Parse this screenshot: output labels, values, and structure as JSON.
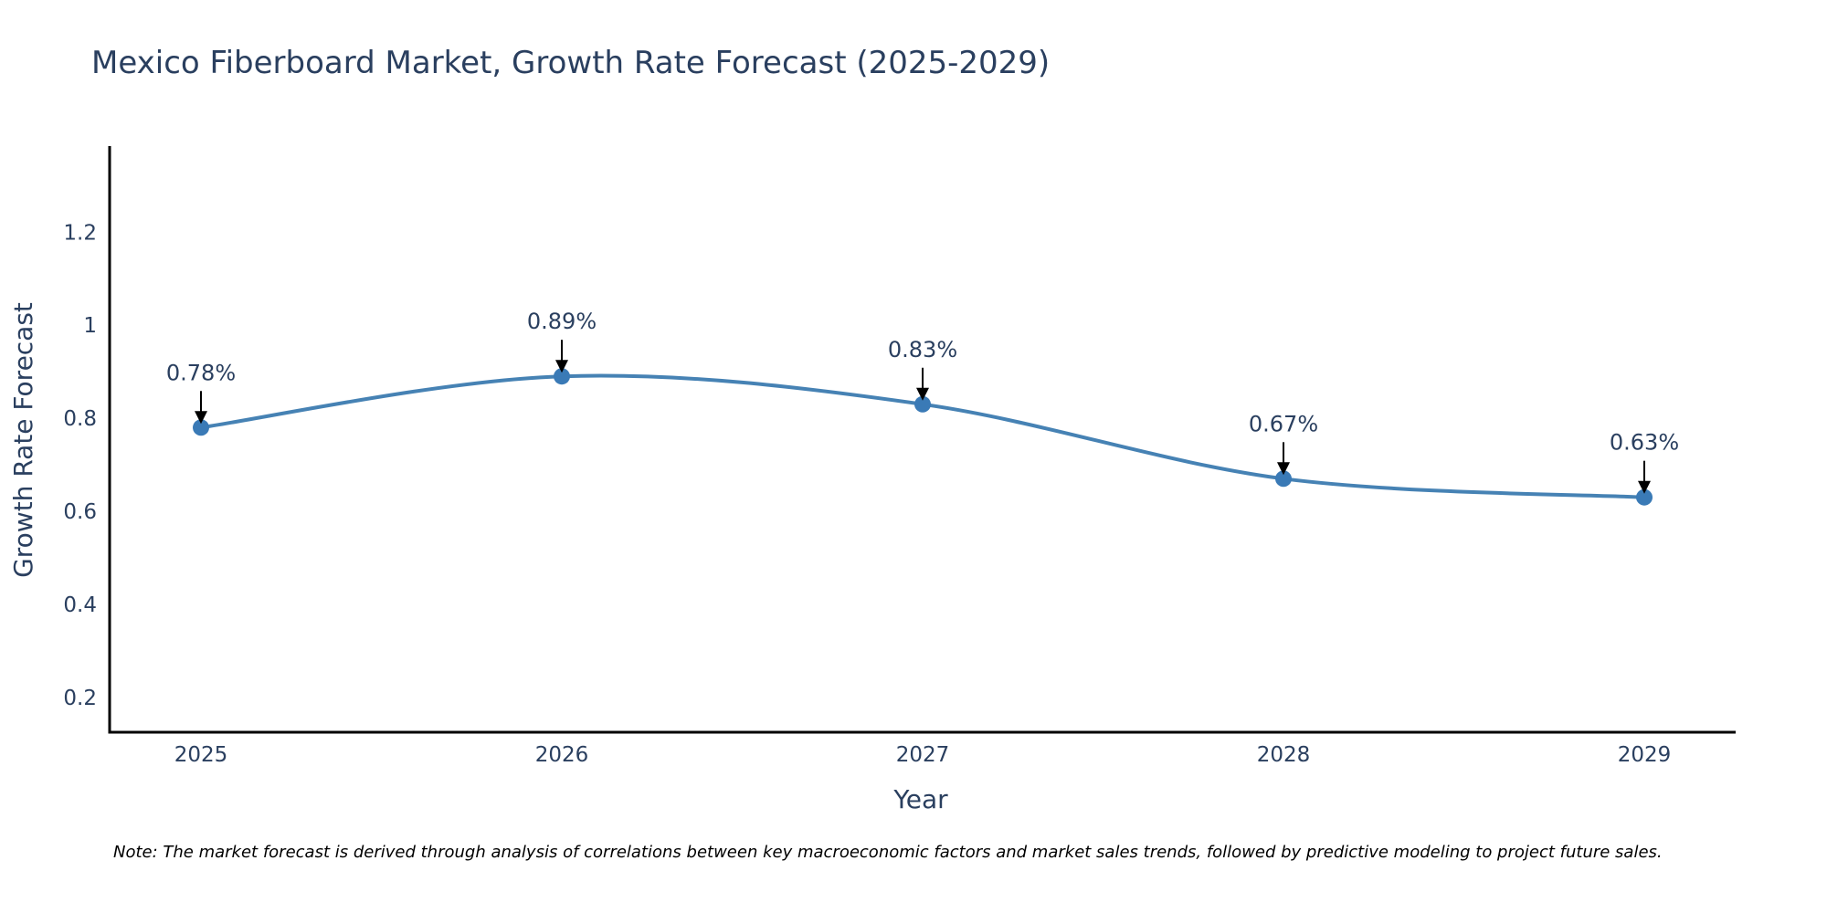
{
  "colors": {
    "line": "#4682b4",
    "marker": "#3a7ab6",
    "axis": "#000000",
    "text": "#2a3f5f",
    "arrow": "#000000"
  },
  "chart_data": {
    "type": "line",
    "title": "Mexico Fiberboard Market, Growth Rate Forecast (2025-2029)",
    "xlabel": "Year",
    "ylabel": "Growth Rate Forecast",
    "categories": [
      "2025",
      "2026",
      "2027",
      "2028",
      "2029"
    ],
    "values": [
      0.78,
      0.89,
      0.83,
      0.67,
      0.63
    ],
    "data_labels": [
      "0.78%",
      "0.89%",
      "0.83%",
      "0.67%",
      "0.63%"
    ],
    "ylim": [
      0.125,
      1.385
    ],
    "yticks": [
      0.2,
      0.4,
      0.6,
      0.8,
      1,
      1.2
    ],
    "ytick_labels": [
      "0.2",
      "0.4",
      "0.6",
      "0.8",
      "1",
      "1.2"
    ],
    "grid": false,
    "line_shape": "spline",
    "note": "Note: The market forecast is derived through analysis of correlations between key macroeconomic factors and market sales trends, followed by predictive modeling to project future sales."
  }
}
